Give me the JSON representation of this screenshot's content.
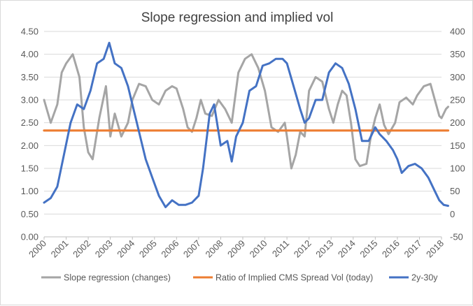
{
  "chart_data": {
    "type": "line",
    "title": "Slope regression and implied vol",
    "x": [
      "2000",
      "2001",
      "2002",
      "2003",
      "2004",
      "2005",
      "2006",
      "2007",
      "2008",
      "2009",
      "2010",
      "2011",
      "2012",
      "2013",
      "2014",
      "2015",
      "2016",
      "2017",
      "2018"
    ],
    "y_left": {
      "ylim": [
        0.0,
        4.5
      ],
      "ticks": [
        "0.00",
        "0.50",
        "1.00",
        "1.50",
        "2.00",
        "2.50",
        "3.00",
        "3.50",
        "4.00",
        "4.50"
      ]
    },
    "y_right": {
      "ylim": [
        -50,
        400
      ],
      "ticks": [
        "-50",
        "0",
        "50",
        "100",
        "150",
        "200",
        "250",
        "300",
        "350",
        "400"
      ]
    },
    "grid": true,
    "legend_position": "bottom",
    "series": [
      {
        "name": "Slope regression (changes)",
        "axis": "left",
        "color": "#a5a5a5",
        "points": [
          [
            2000.0,
            3.0
          ],
          [
            2000.3,
            2.5
          ],
          [
            2000.6,
            2.9
          ],
          [
            2000.8,
            3.6
          ],
          [
            2001.0,
            3.8
          ],
          [
            2001.3,
            4.0
          ],
          [
            2001.6,
            3.5
          ],
          [
            2001.8,
            2.4
          ],
          [
            2002.0,
            1.85
          ],
          [
            2002.2,
            1.7
          ],
          [
            2002.5,
            2.6
          ],
          [
            2002.8,
            3.3
          ],
          [
            2003.0,
            2.2
          ],
          [
            2003.2,
            2.7
          ],
          [
            2003.5,
            2.2
          ],
          [
            2003.8,
            2.5
          ],
          [
            2004.0,
            3.0
          ],
          [
            2004.3,
            3.35
          ],
          [
            2004.6,
            3.3
          ],
          [
            2004.9,
            3.0
          ],
          [
            2005.2,
            2.9
          ],
          [
            2005.5,
            3.2
          ],
          [
            2005.8,
            3.3
          ],
          [
            2006.0,
            3.25
          ],
          [
            2006.3,
            2.8
          ],
          [
            2006.5,
            2.4
          ],
          [
            2006.7,
            2.3
          ],
          [
            2006.9,
            2.6
          ],
          [
            2007.1,
            3.0
          ],
          [
            2007.3,
            2.7
          ],
          [
            2007.6,
            2.65
          ],
          [
            2007.9,
            3.0
          ],
          [
            2008.2,
            2.8
          ],
          [
            2008.5,
            2.5
          ],
          [
            2008.8,
            3.6
          ],
          [
            2009.1,
            3.9
          ],
          [
            2009.4,
            4.0
          ],
          [
            2009.7,
            3.7
          ],
          [
            2010.0,
            3.2
          ],
          [
            2010.3,
            2.4
          ],
          [
            2010.6,
            2.3
          ],
          [
            2010.9,
            2.5
          ],
          [
            2011.0,
            2.2
          ],
          [
            2011.2,
            1.5
          ],
          [
            2011.4,
            1.8
          ],
          [
            2011.6,
            2.3
          ],
          [
            2011.8,
            2.2
          ],
          [
            2012.0,
            3.2
          ],
          [
            2012.3,
            3.5
          ],
          [
            2012.6,
            3.4
          ],
          [
            2012.9,
            2.8
          ],
          [
            2013.1,
            2.5
          ],
          [
            2013.3,
            2.9
          ],
          [
            2013.5,
            3.2
          ],
          [
            2013.7,
            3.1
          ],
          [
            2013.9,
            2.5
          ],
          [
            2014.1,
            1.7
          ],
          [
            2014.3,
            1.55
          ],
          [
            2014.6,
            1.6
          ],
          [
            2014.8,
            2.2
          ],
          [
            2015.0,
            2.6
          ],
          [
            2015.2,
            2.9
          ],
          [
            2015.4,
            2.45
          ],
          [
            2015.6,
            2.25
          ],
          [
            2015.9,
            2.5
          ],
          [
            2016.1,
            2.95
          ],
          [
            2016.4,
            3.05
          ],
          [
            2016.7,
            2.9
          ],
          [
            2016.9,
            3.1
          ],
          [
            2017.2,
            3.3
          ],
          [
            2017.5,
            3.35
          ],
          [
            2017.7,
            3.0
          ],
          [
            2017.9,
            2.65
          ],
          [
            2018.0,
            2.6
          ],
          [
            2018.2,
            2.8
          ],
          [
            2018.3,
            2.85
          ]
        ]
      },
      {
        "name": "Ratio of Implied CMS Spread Vol (today)",
        "axis": "left",
        "color": "#ed7d31",
        "points": [
          [
            2000.0,
            2.33
          ],
          [
            2018.3,
            2.33
          ]
        ]
      },
      {
        "name": "2y-30y",
        "axis": "right",
        "color": "#4472c4",
        "points": [
          [
            2000.0,
            25
          ],
          [
            2000.3,
            35
          ],
          [
            2000.6,
            60
          ],
          [
            2000.9,
            130
          ],
          [
            2001.2,
            200
          ],
          [
            2001.5,
            240
          ],
          [
            2001.8,
            230
          ],
          [
            2002.1,
            270
          ],
          [
            2002.4,
            330
          ],
          [
            2002.7,
            340
          ],
          [
            2002.95,
            375
          ],
          [
            2003.2,
            330
          ],
          [
            2003.5,
            320
          ],
          [
            2003.8,
            280
          ],
          [
            2004.0,
            240
          ],
          [
            2004.3,
            180
          ],
          [
            2004.6,
            120
          ],
          [
            2004.9,
            80
          ],
          [
            2005.2,
            40
          ],
          [
            2005.5,
            15
          ],
          [
            2005.8,
            30
          ],
          [
            2006.1,
            20
          ],
          [
            2006.4,
            20
          ],
          [
            2006.7,
            25
          ],
          [
            2007.0,
            40
          ],
          [
            2007.2,
            100
          ],
          [
            2007.5,
            220
          ],
          [
            2007.7,
            240
          ],
          [
            2008.0,
            150
          ],
          [
            2008.3,
            160
          ],
          [
            2008.5,
            115
          ],
          [
            2008.7,
            170
          ],
          [
            2009.0,
            200
          ],
          [
            2009.3,
            270
          ],
          [
            2009.6,
            280
          ],
          [
            2009.9,
            325
          ],
          [
            2010.2,
            330
          ],
          [
            2010.5,
            340
          ],
          [
            2010.8,
            340
          ],
          [
            2011.0,
            330
          ],
          [
            2011.3,
            280
          ],
          [
            2011.6,
            230
          ],
          [
            2011.8,
            200
          ],
          [
            2012.0,
            210
          ],
          [
            2012.3,
            250
          ],
          [
            2012.6,
            250
          ],
          [
            2012.9,
            310
          ],
          [
            2013.2,
            330
          ],
          [
            2013.5,
            320
          ],
          [
            2013.8,
            285
          ],
          [
            2014.1,
            230
          ],
          [
            2014.4,
            160
          ],
          [
            2014.7,
            160
          ],
          [
            2015.0,
            190
          ],
          [
            2015.2,
            175
          ],
          [
            2015.5,
            160
          ],
          [
            2015.8,
            140
          ],
          [
            2016.0,
            120
          ],
          [
            2016.2,
            90
          ],
          [
            2016.5,
            105
          ],
          [
            2016.8,
            110
          ],
          [
            2017.1,
            100
          ],
          [
            2017.4,
            80
          ],
          [
            2017.7,
            50
          ],
          [
            2017.9,
            30
          ],
          [
            2018.1,
            20
          ],
          [
            2018.3,
            18
          ]
        ]
      }
    ]
  }
}
